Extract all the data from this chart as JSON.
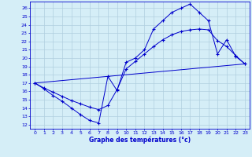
{
  "xlabel": "Graphe des températures (°c)",
  "bg_color": "#d5eef7",
  "line_color": "#0000cc",
  "grid_color": "#b0cfe0",
  "ylim": [
    11.5,
    26.8
  ],
  "xlim": [
    -0.5,
    23.5
  ],
  "yticks": [
    12,
    13,
    14,
    15,
    16,
    17,
    18,
    19,
    20,
    21,
    22,
    23,
    24,
    25,
    26
  ],
  "xticks": [
    0,
    1,
    2,
    3,
    4,
    5,
    6,
    7,
    8,
    9,
    10,
    11,
    12,
    13,
    14,
    15,
    16,
    17,
    18,
    19,
    20,
    21,
    22,
    23
  ],
  "curve1_x": [
    0,
    1,
    2,
    3,
    4,
    5,
    6,
    7,
    8,
    9,
    10,
    11,
    12,
    13,
    14,
    15,
    16,
    17,
    18,
    19,
    20,
    21,
    22,
    23
  ],
  "curve1_y": [
    17.0,
    16.3,
    15.5,
    14.8,
    14.0,
    13.2,
    12.5,
    12.2,
    17.8,
    16.1,
    19.5,
    20.0,
    21.0,
    23.5,
    24.5,
    25.5,
    26.0,
    26.5,
    25.5,
    24.5,
    20.5,
    22.2,
    20.2,
    19.3
  ],
  "curve2_x": [
    0,
    1,
    2,
    3,
    4,
    5,
    6,
    7,
    8,
    9,
    10,
    11,
    12,
    13,
    14,
    15,
    16,
    17,
    18,
    19,
    20,
    21,
    22,
    23
  ],
  "curve2_y": [
    17.0,
    16.4,
    15.9,
    15.4,
    14.9,
    14.5,
    14.1,
    13.8,
    14.3,
    16.2,
    18.7,
    19.6,
    20.5,
    21.4,
    22.2,
    22.8,
    23.2,
    23.4,
    23.5,
    23.4,
    22.1,
    21.4,
    20.3,
    19.3
  ],
  "line3_x": [
    0,
    23
  ],
  "line3_y": [
    17.0,
    19.3
  ]
}
